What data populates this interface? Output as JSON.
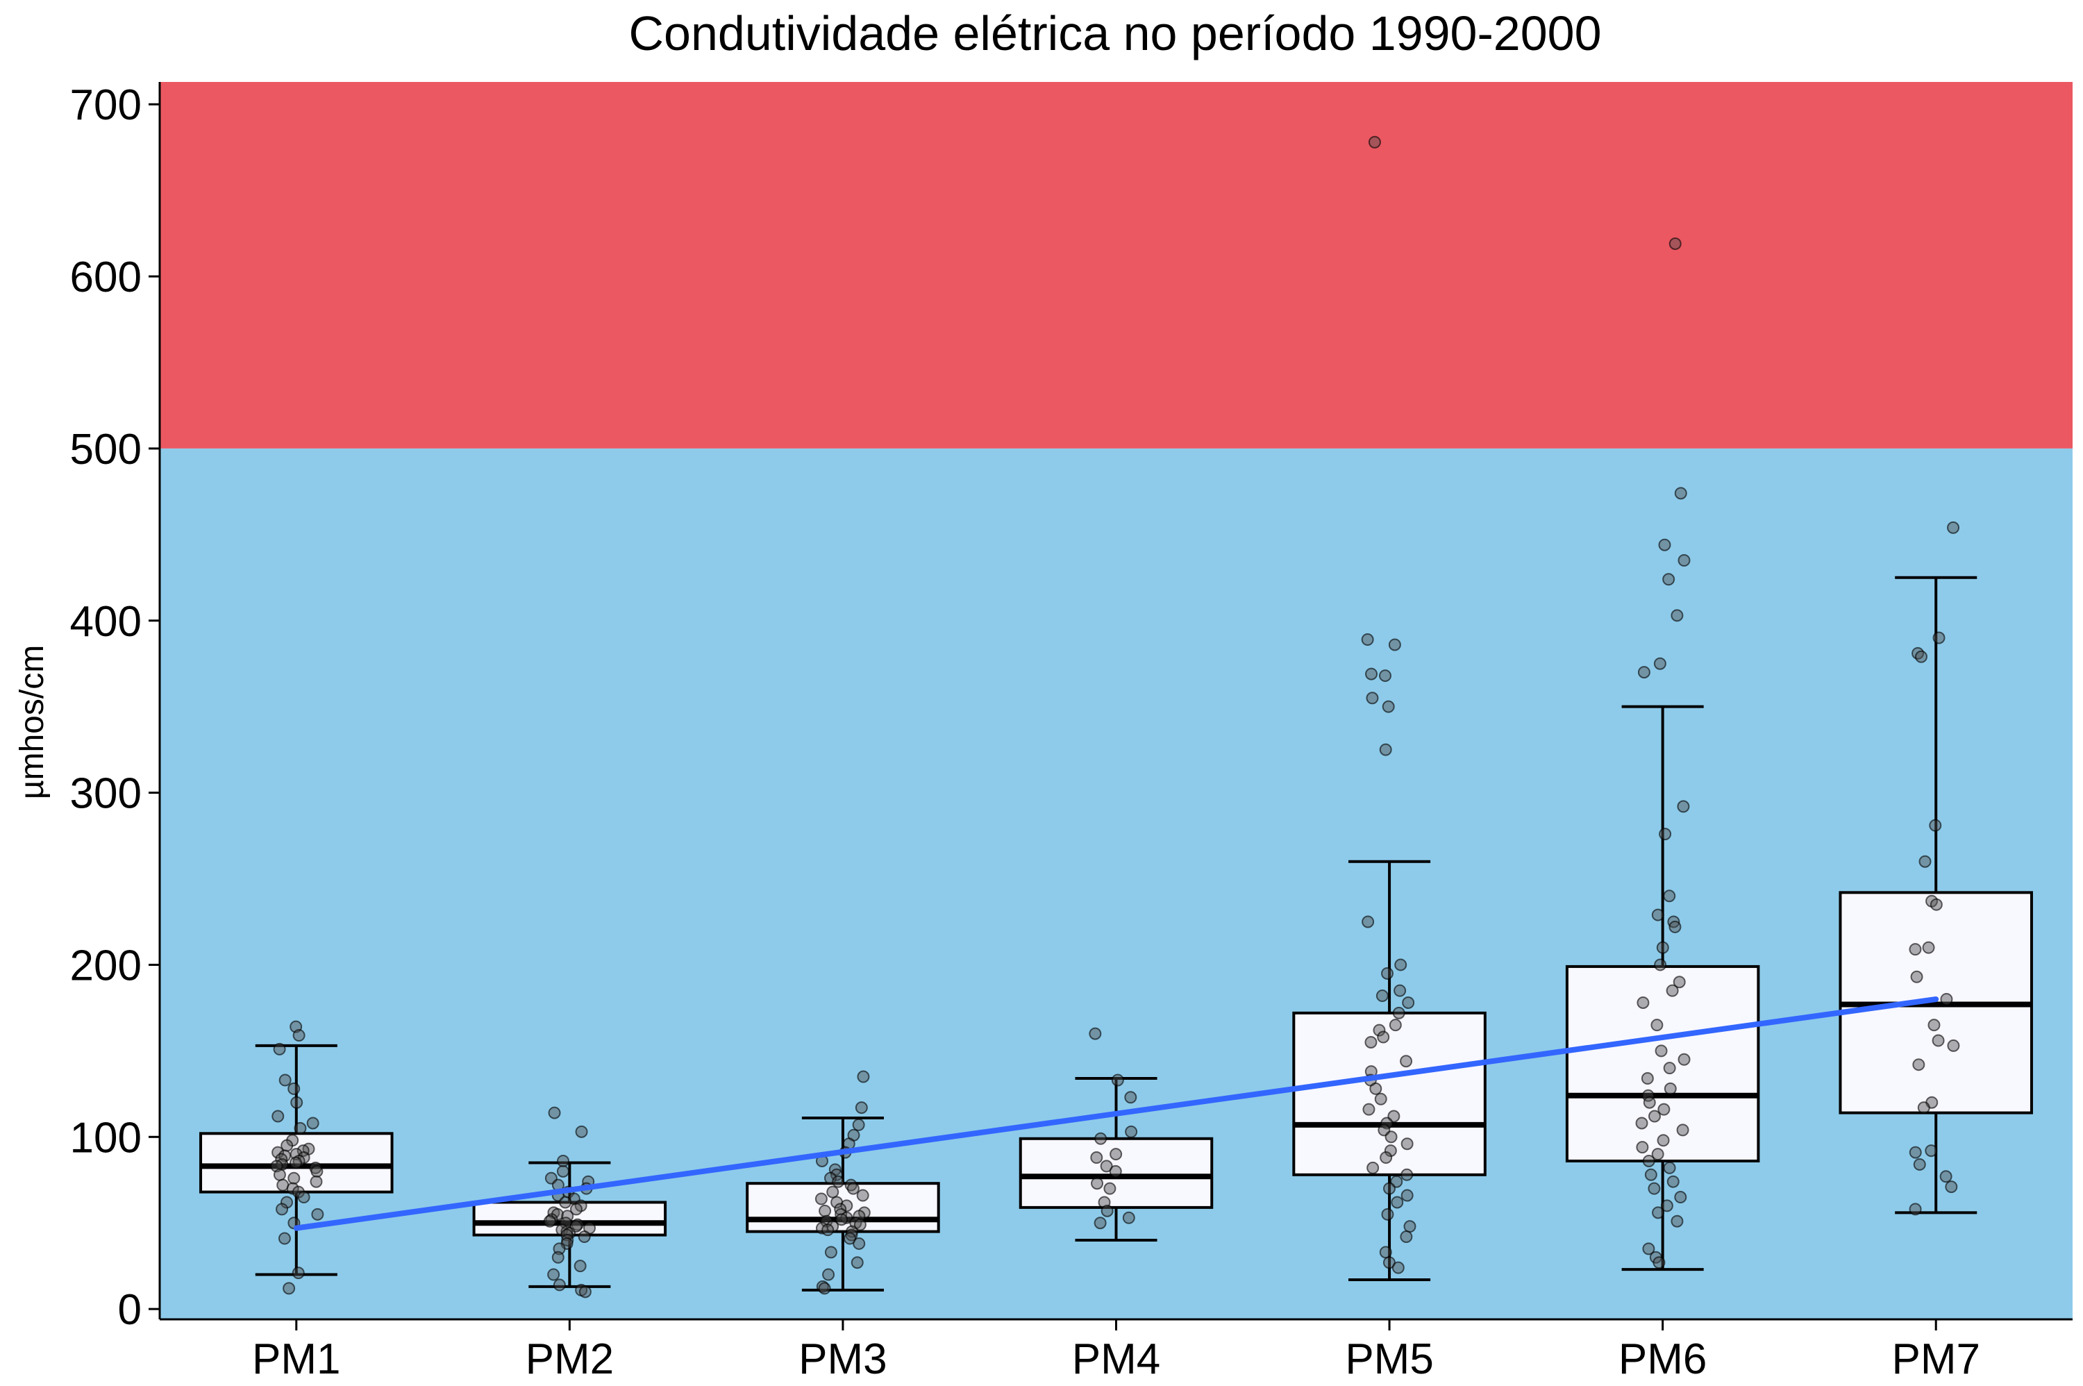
{
  "chart_data": {
    "type": "box",
    "title": "Condutividade elétrica no período 1990-2000",
    "xlabel": "",
    "ylabel": "µmhos/cm",
    "ylim": [
      -6,
      713
    ],
    "yticks": [
      0,
      100,
      200,
      300,
      400,
      500,
      600,
      700
    ],
    "categories": [
      "PM1",
      "PM2",
      "PM3",
      "PM4",
      "PM5",
      "PM6",
      "PM7"
    ],
    "bands": [
      {
        "from": 500,
        "to": 713,
        "color": "#EB5862"
      },
      {
        "from": -6,
        "to": 500,
        "color": "#8ECBEA"
      }
    ],
    "boxes": [
      {
        "category": "PM1",
        "whisker_low": 20,
        "q1": 68,
        "median": 83,
        "q3": 102,
        "whisker_high": 153
      },
      {
        "category": "PM2",
        "whisker_low": 13,
        "q1": 43,
        "median": 50,
        "q3": 62,
        "whisker_high": 85
      },
      {
        "category": "PM3",
        "whisker_low": 11,
        "q1": 45,
        "median": 52,
        "q3": 73,
        "whisker_high": 111
      },
      {
        "category": "PM4",
        "whisker_low": 40,
        "q1": 59,
        "median": 77,
        "q3": 99,
        "whisker_high": 134
      },
      {
        "category": "PM5",
        "whisker_low": 17,
        "q1": 78,
        "median": 107,
        "q3": 172,
        "whisker_high": 260
      },
      {
        "category": "PM6",
        "whisker_low": 23,
        "q1": 86,
        "median": 124,
        "q3": 199,
        "whisker_high": 350
      },
      {
        "category": "PM7",
        "whisker_low": 56,
        "q1": 114,
        "median": 177,
        "q3": 242,
        "whisker_high": 425
      }
    ],
    "points": [
      {
        "category": "PM1",
        "values": [
          164,
          159,
          151,
          133,
          128,
          120,
          112,
          108,
          105,
          98,
          95,
          93,
          92,
          91,
          90,
          89,
          88,
          87,
          86,
          85,
          84,
          83,
          82,
          80,
          78,
          76,
          74,
          72,
          70,
          68,
          65,
          62,
          58,
          55,
          50,
          41,
          21,
          12
        ]
      },
      {
        "category": "PM2",
        "values": [
          114,
          103,
          86,
          80,
          76,
          74,
          72,
          70,
          68,
          66,
          64,
          62,
          60,
          58,
          56,
          55,
          54,
          52,
          51,
          50,
          49,
          48,
          47,
          46,
          45,
          44,
          43,
          42,
          40,
          38,
          35,
          30,
          25,
          20,
          14,
          11,
          10
        ]
      },
      {
        "category": "PM3",
        "values": [
          135,
          117,
          107,
          101,
          96,
          91,
          86,
          81,
          78,
          76,
          74,
          72,
          70,
          68,
          66,
          64,
          62,
          60,
          58,
          57,
          56,
          55,
          54,
          53,
          52,
          51,
          50,
          49,
          48,
          47,
          46,
          45,
          43,
          41,
          38,
          33,
          27,
          20,
          13,
          12
        ]
      },
      {
        "category": "PM4",
        "values": [
          160,
          133,
          123,
          103,
          99,
          90,
          88,
          83,
          80,
          73,
          70,
          62,
          57,
          53,
          50
        ]
      },
      {
        "category": "PM5",
        "values": [
          678,
          389,
          386,
          369,
          368,
          355,
          350,
          325,
          225,
          200,
          195,
          185,
          182,
          178,
          172,
          165,
          162,
          158,
          155,
          144,
          138,
          133,
          128,
          122,
          116,
          112,
          108,
          104,
          100,
          96,
          92,
          88,
          82,
          78,
          74,
          70,
          66,
          62,
          55,
          48,
          42,
          33,
          27,
          24
        ]
      },
      {
        "category": "PM6",
        "values": [
          619,
          474,
          444,
          435,
          424,
          403,
          375,
          370,
          292,
          276,
          240,
          229,
          225,
          222,
          210,
          200,
          190,
          185,
          178,
          165,
          150,
          145,
          140,
          134,
          128,
          124,
          120,
          116,
          112,
          108,
          104,
          98,
          94,
          90,
          86,
          82,
          78,
          74,
          70,
          65,
          60,
          56,
          51,
          35,
          30,
          27
        ]
      },
      {
        "category": "PM7",
        "values": [
          454,
          390,
          381,
          379,
          281,
          260,
          237,
          235,
          210,
          209,
          193,
          180,
          165,
          156,
          153,
          142,
          120,
          117,
          92,
          91,
          84,
          77,
          71,
          58
        ]
      }
    ],
    "trend_line": {
      "color": "#3366FF",
      "points": [
        [
          "PM1",
          47
        ],
        [
          "PM7",
          180
        ]
      ]
    },
    "grid": false,
    "legend": "none"
  }
}
